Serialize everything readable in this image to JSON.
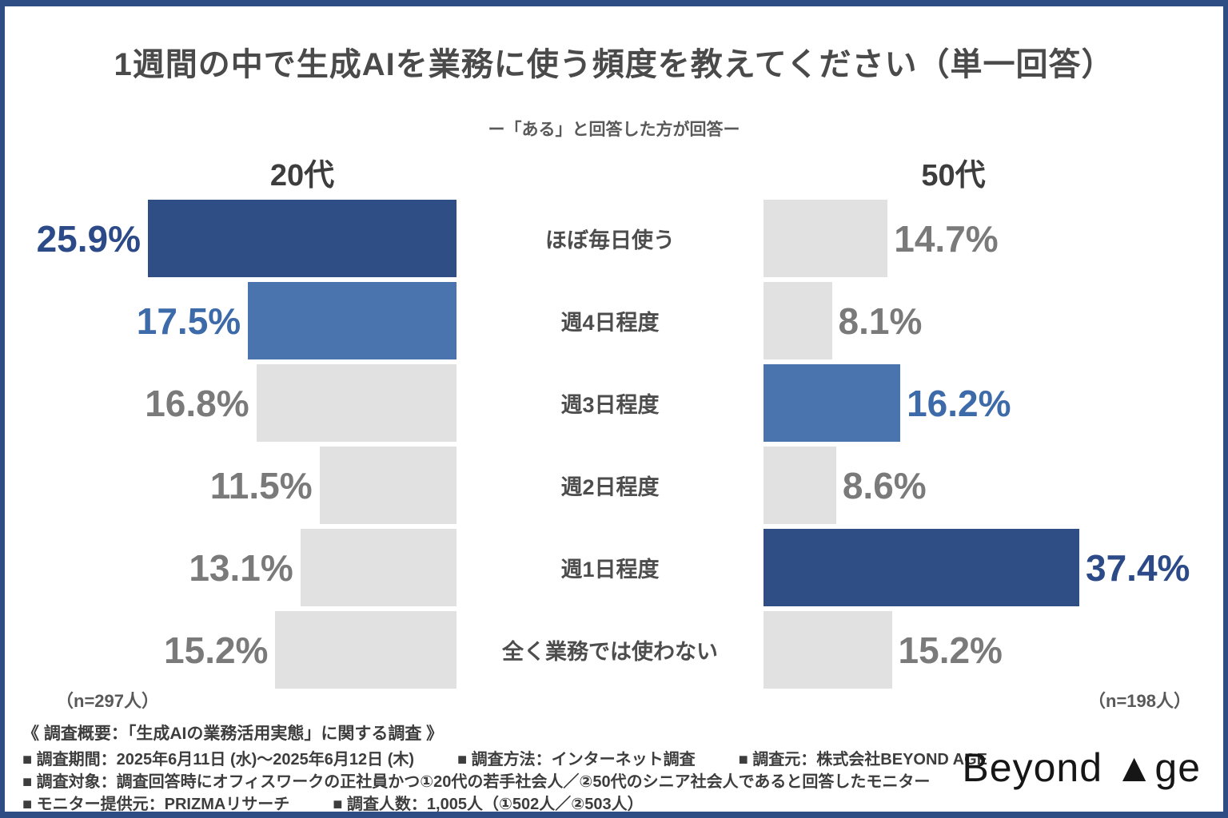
{
  "title": "1週間の中で生成AIを業務に使う頻度を教えてください（単一回答）",
  "subtitle": "ー「ある」と回答した方が回答ー",
  "chart_data": {
    "type": "bar",
    "orientation": "horizontal paired (left series grows leftward, right series grows rightward)",
    "categories": [
      "ほぼ毎日使う",
      "週4日程度",
      "週3日程度",
      "週2日程度",
      "週1日程度",
      "全く業務では使わない"
    ],
    "series": [
      {
        "name": "20代",
        "n_label": "（n=297人）",
        "values": [
          25.9,
          17.5,
          16.8,
          11.5,
          13.1,
          15.2
        ]
      },
      {
        "name": "50代",
        "n_label": "（n=198人）",
        "values": [
          14.7,
          8.1,
          16.2,
          8.6,
          37.4,
          15.2
        ]
      }
    ],
    "value_suffix": "%",
    "highlight_rule": "largest value = dark navy, second largest = medium blue, others = gray",
    "legend": "none",
    "grid": "off",
    "colors": {
      "primary": "#2f4e86",
      "secondary": "#4a74ae",
      "bar_default": "#e1e1e2",
      "value_text_default": "#7a7a7a",
      "value_text_primary": "#2b4a87",
      "value_text_secondary": "#3d6aa8"
    }
  },
  "footer": {
    "heading": "《 調査概要：「生成AIの業務活用実態」に関する調査 》",
    "rows": [
      [
        "■ 調査期間：2025年6月11日 (水)～2025年6月12日 (木)",
        "■ 調査方法：インターネット調査",
        "■ 調査元：株式会社BEYOND AGE"
      ],
      [
        "■ 調査対象：調査回答時にオフィスワークの正社員かつ①20代の若手社会人／②50代のシニア社会人であると回答したモニター"
      ],
      [
        "■ モニター提供元：PRIZMAリサーチ",
        "■ 調査人数：1,005人（①502人／②503人）"
      ]
    ]
  },
  "logo": {
    "text": "Beyond ▲ge"
  }
}
